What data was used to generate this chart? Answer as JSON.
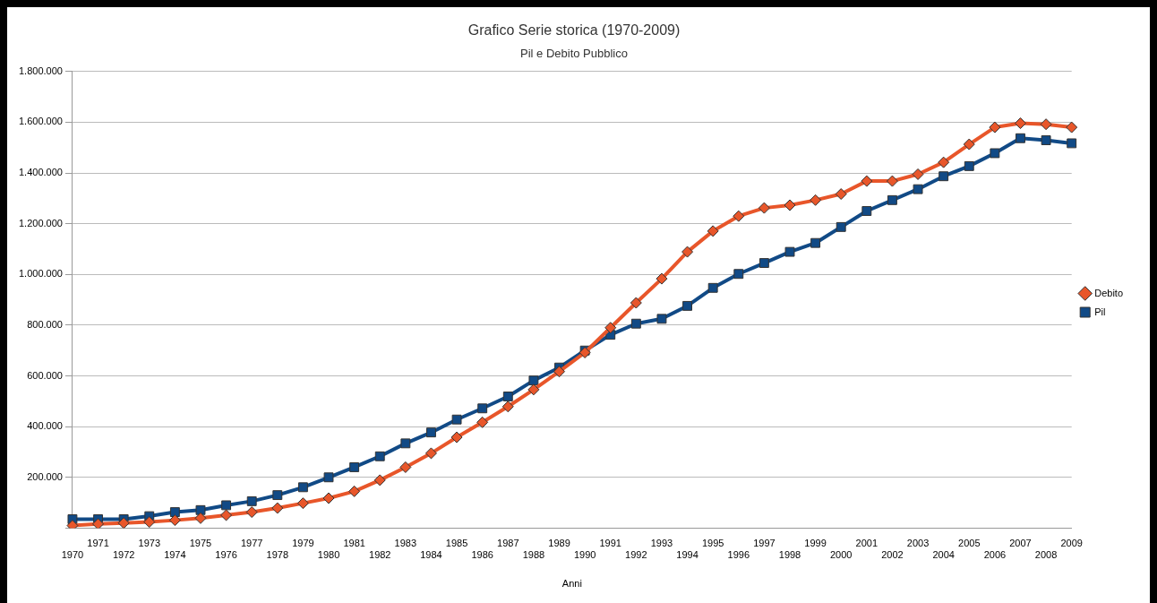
{
  "chart_data": {
    "type": "line",
    "title": "Grafico Serie storica (1970-2009)",
    "subtitle": "Pil e Debito Pubblico",
    "xlabel": "Anni",
    "categories": [
      "1970",
      "1971",
      "1972",
      "1973",
      "1974",
      "1975",
      "1976",
      "1977",
      "1978",
      "1979",
      "1980",
      "1981",
      "1982",
      "1983",
      "1984",
      "1985",
      "1986",
      "1987",
      "1988",
      "1989",
      "1990",
      "1991",
      "1992",
      "1993",
      "1994",
      "1995",
      "1996",
      "1997",
      "1998",
      "1999",
      "2000",
      "2001",
      "2002",
      "2003",
      "2004",
      "2005",
      "2006",
      "2007",
      "2008",
      "2009"
    ],
    "series": [
      {
        "name": "Pil",
        "color": "#114a86",
        "marker": "square",
        "values": [
          35000,
          35000,
          35000,
          47000,
          63000,
          71000,
          90000,
          106000,
          130000,
          161000,
          200000,
          240000,
          283000,
          334000,
          377000,
          428000,
          472000,
          519000,
          582000,
          633000,
          700000,
          762000,
          806000,
          825000,
          876000,
          947000,
          1002000,
          1045000,
          1089000,
          1124000,
          1187000,
          1250000,
          1293000,
          1336000,
          1387000,
          1427000,
          1478000,
          1537000,
          1529000,
          1517000
        ]
      },
      {
        "name": "Debito",
        "color": "#e8562a",
        "marker": "diamond",
        "values": [
          10000,
          16000,
          20000,
          24000,
          31000,
          39000,
          51000,
          63000,
          79000,
          98000,
          118000,
          145000,
          189000,
          240000,
          295000,
          358000,
          417000,
          479000,
          546000,
          617000,
          692000,
          790000,
          888000,
          983000,
          1089000,
          1171000,
          1230000,
          1262000,
          1273000,
          1293000,
          1317000,
          1368000,
          1368000,
          1395000,
          1442000,
          1513000,
          1580000,
          1596000,
          1592000,
          1580000
        ]
      }
    ],
    "ylim": [
      0,
      1800000
    ],
    "yticks": [
      {
        "value": 0,
        "label": null
      },
      {
        "value": 200000,
        "label": "200.000"
      },
      {
        "value": 400000,
        "label": "400.000"
      },
      {
        "value": 600000,
        "label": "600.000"
      },
      {
        "value": 800000,
        "label": "800.000"
      },
      {
        "value": 1000000,
        "label": "1.000.000"
      },
      {
        "value": 1200000,
        "label": "1.200.000"
      },
      {
        "value": 1400000,
        "label": "1.400.000"
      },
      {
        "value": 1600000,
        "label": "1.600.000"
      },
      {
        "value": 1800000,
        "label": "1.800.000"
      }
    ],
    "grid": "y",
    "legend": "right",
    "line_style": "solid"
  }
}
